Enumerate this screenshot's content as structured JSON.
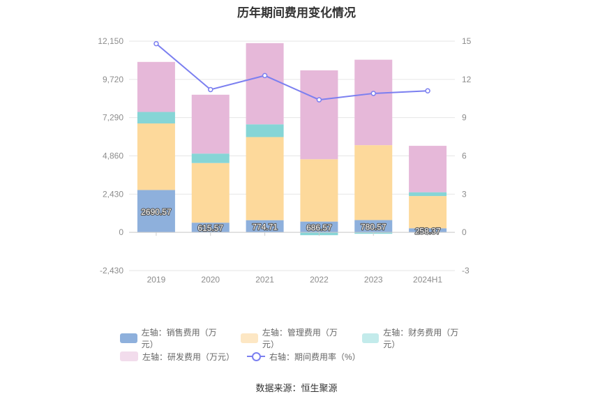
{
  "chart_data": {
    "type": "bar",
    "title": "历年期间费用变化情况",
    "categories": [
      "2019",
      "2020",
      "2021",
      "2022",
      "2023",
      "2024H1"
    ],
    "left_axis": {
      "ylim": [
        -2430,
        12150
      ],
      "ticks": [
        "12,150",
        "9,720",
        "7,290",
        "4,860",
        "2,430",
        "0",
        "-2,430"
      ]
    },
    "right_axis": {
      "ylim": [
        -3,
        15
      ],
      "ticks": [
        "15",
        "12",
        "9",
        "6",
        "3",
        "0",
        "-3"
      ]
    },
    "series": [
      {
        "name": "左轴：销售费用（万元）",
        "axis": "left",
        "kind": "bar",
        "color": "#8eb0dc",
        "values": [
          2690.57,
          615.57,
          774.71,
          686.57,
          780.57,
          258.37
        ],
        "labels": [
          "2690.57",
          "615.57",
          "774.71",
          "686.57",
          "780.57",
          "258.37"
        ]
      },
      {
        "name": "左轴：管理费用（万元）",
        "axis": "left",
        "kind": "bar",
        "color": "#fdd99b",
        "values": [
          4230,
          3790,
          5280,
          3960,
          4760,
          2050
        ]
      },
      {
        "name": "左轴：财务费用（万元）",
        "axis": "left",
        "kind": "bar",
        "color": "#86d5d6",
        "values": [
          730,
          600,
          810,
          -180,
          -90,
          240
        ]
      },
      {
        "name": "左轴：研发费用（万元）",
        "axis": "left",
        "kind": "bar",
        "color": "#e6b8d9",
        "values": [
          3180,
          3740,
          5160,
          5650,
          5430,
          2950
        ]
      },
      {
        "name": "右轴：期间费用率（%）",
        "axis": "right",
        "kind": "line",
        "color": "#7b7ff0",
        "values": [
          14.8,
          11.2,
          12.3,
          10.4,
          10.9,
          11.1
        ]
      }
    ],
    "grid": true,
    "legend_position": "bottom"
  },
  "source_text": "数据来源：恒生聚源"
}
